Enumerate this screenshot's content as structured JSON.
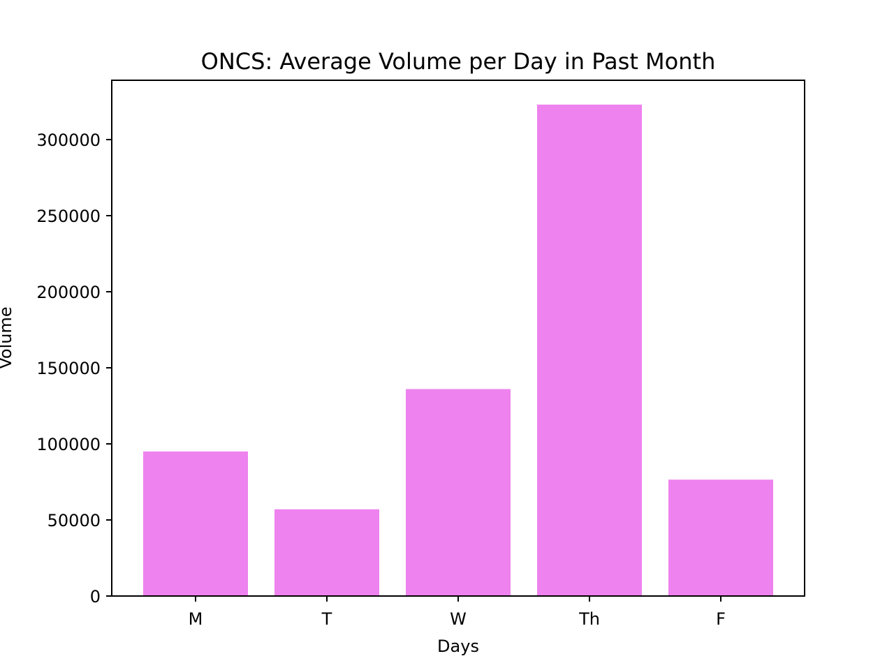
{
  "chart_data": {
    "type": "bar",
    "title": "ONCS: Average Volume per Day in Past Month",
    "xlabel": "Days",
    "ylabel": "Volume",
    "categories": [
      "M",
      "T",
      "W",
      "Th",
      "F"
    ],
    "values": [
      95000,
      57000,
      136000,
      323000,
      76500
    ],
    "bar_color": "#ee82ee",
    "ylim": [
      0,
      339000
    ],
    "yticks": [
      0,
      50000,
      100000,
      150000,
      200000,
      250000,
      300000
    ],
    "ytick_labels": [
      "0",
      "50000",
      "100000",
      "150000",
      "200000",
      "250000",
      "300000"
    ],
    "grid": false,
    "legend": "none"
  }
}
